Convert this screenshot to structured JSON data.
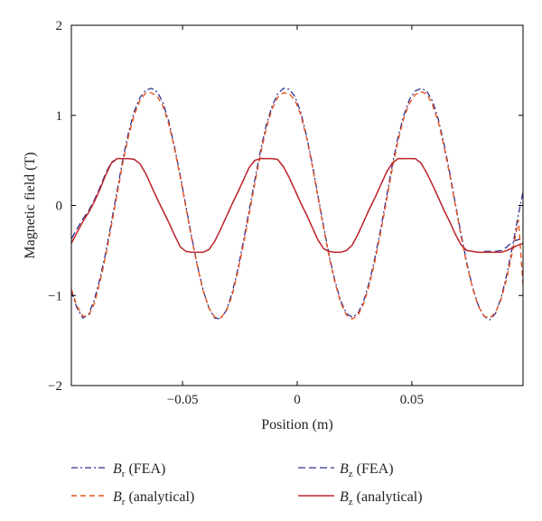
{
  "chart_data": {
    "type": "line",
    "xlabel": "Position (m)",
    "ylabel": "Magnetic field (T)",
    "xlim": [
      -0.0985,
      0.0985
    ],
    "ylim": [
      -2,
      2
    ],
    "xticks": [
      -0.05,
      0,
      0.05
    ],
    "xtick_labels": [
      "−0.05",
      "0",
      "0.05"
    ],
    "yticks": [
      -2,
      -1,
      0,
      1,
      2
    ],
    "ytick_labels": [
      "−2",
      "−1",
      "0",
      "1",
      "2"
    ],
    "grid": false,
    "legend_position": "bottom",
    "series": [
      {
        "name": "Br (FEA)",
        "symbol": "B",
        "sub": "r",
        "suffix": " (FEA)",
        "color": "#2e3192",
        "dash": "7,3,2,3",
        "width": 1.3,
        "x": [
          -0.0985,
          -0.096,
          -0.0935,
          -0.091,
          -0.0885,
          -0.086,
          -0.0835,
          -0.081,
          -0.0785,
          -0.076,
          -0.0735,
          -0.071,
          -0.0685,
          -0.066,
          -0.0635,
          -0.061,
          -0.0585,
          -0.056,
          -0.0535,
          -0.051,
          -0.0485,
          -0.046,
          -0.0435,
          -0.041,
          -0.0385,
          -0.036,
          -0.0335,
          -0.031,
          -0.0285,
          -0.026,
          -0.0235,
          -0.021,
          -0.0185,
          -0.016,
          -0.0135,
          -0.011,
          -0.0085,
          -0.006,
          -0.0035,
          -0.001,
          0.0015,
          0.004,
          0.0065,
          0.009,
          0.0115,
          0.014,
          0.0165,
          0.019,
          0.0215,
          0.024,
          0.0265,
          0.029,
          0.0315,
          0.034,
          0.0365,
          0.039,
          0.0415,
          0.044,
          0.0465,
          0.049,
          0.0515,
          0.054,
          0.0565,
          0.059,
          0.0615,
          0.064,
          0.0665,
          0.069,
          0.0715,
          0.074,
          0.0765,
          0.079,
          0.0815,
          0.084,
          0.0865,
          0.089,
          0.0915,
          0.094,
          0.0965,
          0.0985
        ],
        "y": [
          -0.95,
          -1.14,
          -1.25,
          -1.21,
          -1.05,
          -0.81,
          -0.52,
          -0.18,
          0.17,
          0.52,
          0.82,
          1.05,
          1.2,
          1.28,
          1.3,
          1.26,
          1.14,
          0.93,
          0.65,
          0.33,
          -0.01,
          -0.35,
          -0.67,
          -0.94,
          -1.14,
          -1.25,
          -1.26,
          -1.17,
          -0.98,
          -0.72,
          -0.4,
          -0.06,
          0.28,
          0.61,
          0.89,
          1.1,
          1.24,
          1.3,
          1.29,
          1.21,
          1.04,
          0.78,
          0.47,
          0.12,
          -0.23,
          -0.56,
          -0.84,
          -1.06,
          -1.2,
          -1.24,
          -1.2,
          -1.06,
          -0.85,
          -0.57,
          -0.25,
          0.1,
          0.45,
          0.76,
          1.0,
          1.18,
          1.27,
          1.3,
          1.27,
          1.16,
          0.96,
          0.69,
          0.37,
          0.02,
          -0.32,
          -0.64,
          -0.91,
          -1.11,
          -1.23,
          -1.27,
          -1.2,
          -1.02,
          -0.76,
          -0.44,
          -0.1,
          0.15
        ]
      },
      {
        "name": "Bz (FEA)",
        "symbol": "B",
        "sub": "z",
        "suffix": " (FEA)",
        "color": "#2e3192",
        "dash": "8,4",
        "width": 1.3,
        "x": [
          -0.0985,
          -0.096,
          -0.0935,
          -0.091,
          -0.0885,
          -0.086,
          -0.0835,
          -0.081,
          -0.0785,
          -0.076,
          -0.0735,
          -0.071,
          -0.0685,
          -0.066,
          -0.0635,
          -0.061,
          -0.0585,
          -0.056,
          -0.0535,
          -0.051,
          -0.0485,
          -0.046,
          -0.0435,
          -0.041,
          -0.0385,
          -0.036,
          -0.0335,
          -0.031,
          -0.0285,
          -0.026,
          -0.0235,
          -0.021,
          -0.0185,
          -0.016,
          -0.0135,
          -0.011,
          -0.0085,
          -0.006,
          -0.0035,
          -0.001,
          0.0015,
          0.004,
          0.0065,
          0.009,
          0.0115,
          0.014,
          0.0165,
          0.019,
          0.0215,
          0.024,
          0.0265,
          0.029,
          0.0315,
          0.034,
          0.0365,
          0.039,
          0.0415,
          0.044,
          0.0465,
          0.049,
          0.0515,
          0.054,
          0.0565,
          0.059,
          0.0615,
          0.064,
          0.0665,
          0.069,
          0.0715,
          0.074,
          0.0765,
          0.079,
          0.0815,
          0.084,
          0.0865,
          0.089,
          0.0915,
          0.094,
          0.0965,
          0.0985
        ],
        "y": [
          -0.37,
          -0.26,
          -0.15,
          -0.06,
          0.06,
          0.2,
          0.36,
          0.48,
          0.52,
          0.52,
          0.52,
          0.51,
          0.46,
          0.35,
          0.21,
          0.07,
          -0.06,
          -0.19,
          -0.33,
          -0.46,
          -0.51,
          -0.52,
          -0.52,
          -0.52,
          -0.49,
          -0.4,
          -0.27,
          -0.13,
          0.01,
          0.14,
          0.28,
          0.42,
          0.5,
          0.52,
          0.52,
          0.52,
          0.51,
          0.43,
          0.31,
          0.17,
          0.03,
          -0.1,
          -0.24,
          -0.38,
          -0.48,
          -0.51,
          -0.52,
          -0.52,
          -0.5,
          -0.44,
          -0.32,
          -0.18,
          -0.04,
          0.09,
          0.23,
          0.37,
          0.47,
          0.52,
          0.52,
          0.52,
          0.52,
          0.47,
          0.36,
          0.23,
          0.09,
          -0.05,
          -0.18,
          -0.32,
          -0.44,
          -0.5,
          -0.51,
          -0.52,
          -0.51,
          -0.51,
          -0.51,
          -0.5,
          -0.46,
          -0.4,
          -0.38,
          -0.37
        ]
      },
      {
        "name": "Br (analytical)",
        "symbol": "B",
        "sub": "r",
        "suffix": " (analytical)",
        "color": "#e8531f",
        "dash": "6,4",
        "width": 1.4,
        "x": [
          -0.0985,
          -0.096,
          -0.0935,
          -0.091,
          -0.0885,
          -0.086,
          -0.0835,
          -0.081,
          -0.0785,
          -0.076,
          -0.0735,
          -0.071,
          -0.0685,
          -0.066,
          -0.0635,
          -0.061,
          -0.0585,
          -0.056,
          -0.0535,
          -0.051,
          -0.0485,
          -0.046,
          -0.0435,
          -0.041,
          -0.0385,
          -0.036,
          -0.0335,
          -0.031,
          -0.0285,
          -0.026,
          -0.0235,
          -0.021,
          -0.0185,
          -0.016,
          -0.0135,
          -0.011,
          -0.0085,
          -0.006,
          -0.0035,
          -0.001,
          0.0015,
          0.004,
          0.0065,
          0.009,
          0.0115,
          0.014,
          0.0165,
          0.019,
          0.0215,
          0.024,
          0.0265,
          0.029,
          0.0315,
          0.034,
          0.0365,
          0.039,
          0.0415,
          0.044,
          0.0465,
          0.049,
          0.0515,
          0.054,
          0.0565,
          0.059,
          0.0615,
          0.064,
          0.0665,
          0.069,
          0.0715,
          0.074,
          0.0765,
          0.079,
          0.0815,
          0.084,
          0.0865,
          0.089,
          0.0915,
          0.094,
          0.0965,
          0.0985
        ],
        "y": [
          -0.93,
          -1.12,
          -1.23,
          -1.23,
          -1.09,
          -0.85,
          -0.56,
          -0.22,
          0.13,
          0.48,
          0.78,
          1.01,
          1.17,
          1.25,
          1.25,
          1.21,
          1.1,
          0.9,
          0.63,
          0.31,
          -0.03,
          -0.37,
          -0.68,
          -0.95,
          -1.14,
          -1.24,
          -1.25,
          -1.18,
          -1.01,
          -0.75,
          -0.44,
          -0.1,
          0.24,
          0.57,
          0.85,
          1.07,
          1.2,
          1.25,
          1.24,
          1.17,
          1.01,
          0.76,
          0.45,
          0.1,
          -0.25,
          -0.58,
          -0.86,
          -1.08,
          -1.22,
          -1.26,
          -1.22,
          -1.09,
          -0.88,
          -0.61,
          -0.29,
          0.06,
          0.41,
          0.72,
          0.97,
          1.14,
          1.23,
          1.26,
          1.24,
          1.12,
          0.93,
          0.66,
          0.34,
          0.0,
          -0.35,
          -0.66,
          -0.92,
          -1.12,
          -1.23,
          -1.25,
          -1.19,
          -1.04,
          -0.8,
          -0.5,
          -0.16,
          -0.88
        ]
      },
      {
        "name": "Bz (analytical)",
        "symbol": "B",
        "sub": "z",
        "suffix": " (analytical)",
        "color": "#c1272d",
        "dash": "",
        "width": 1.5,
        "x": [
          -0.0985,
          -0.096,
          -0.0935,
          -0.091,
          -0.0885,
          -0.086,
          -0.0835,
          -0.081,
          -0.0785,
          -0.076,
          -0.0735,
          -0.071,
          -0.0685,
          -0.066,
          -0.0635,
          -0.061,
          -0.0585,
          -0.056,
          -0.0535,
          -0.051,
          -0.0485,
          -0.046,
          -0.0435,
          -0.041,
          -0.0385,
          -0.036,
          -0.0335,
          -0.031,
          -0.0285,
          -0.026,
          -0.0235,
          -0.021,
          -0.0185,
          -0.016,
          -0.0135,
          -0.011,
          -0.0085,
          -0.006,
          -0.0035,
          -0.001,
          0.0015,
          0.004,
          0.0065,
          0.009,
          0.0115,
          0.014,
          0.0165,
          0.019,
          0.0215,
          0.024,
          0.0265,
          0.029,
          0.0315,
          0.034,
          0.0365,
          0.039,
          0.0415,
          0.044,
          0.0465,
          0.049,
          0.0515,
          0.054,
          0.0565,
          0.059,
          0.0615,
          0.064,
          0.0665,
          0.069,
          0.0715,
          0.074,
          0.0765,
          0.079,
          0.0815,
          0.084,
          0.0865,
          0.089,
          0.0915,
          0.094,
          0.0965,
          0.0985
        ],
        "y": [
          -0.42,
          -0.3,
          -0.18,
          -0.08,
          0.04,
          0.18,
          0.34,
          0.47,
          0.52,
          0.52,
          0.52,
          0.51,
          0.46,
          0.35,
          0.21,
          0.07,
          -0.06,
          -0.19,
          -0.33,
          -0.46,
          -0.51,
          -0.52,
          -0.52,
          -0.52,
          -0.49,
          -0.4,
          -0.27,
          -0.13,
          0.01,
          0.14,
          0.28,
          0.42,
          0.5,
          0.52,
          0.52,
          0.52,
          0.51,
          0.43,
          0.31,
          0.17,
          0.03,
          -0.1,
          -0.24,
          -0.38,
          -0.48,
          -0.51,
          -0.52,
          -0.52,
          -0.5,
          -0.44,
          -0.32,
          -0.18,
          -0.04,
          0.09,
          0.23,
          0.37,
          0.47,
          0.52,
          0.52,
          0.52,
          0.52,
          0.47,
          0.36,
          0.23,
          0.09,
          -0.05,
          -0.18,
          -0.32,
          -0.44,
          -0.5,
          -0.51,
          -0.52,
          -0.52,
          -0.52,
          -0.52,
          -0.52,
          -0.5,
          -0.47,
          -0.44,
          -0.42
        ]
      }
    ]
  }
}
